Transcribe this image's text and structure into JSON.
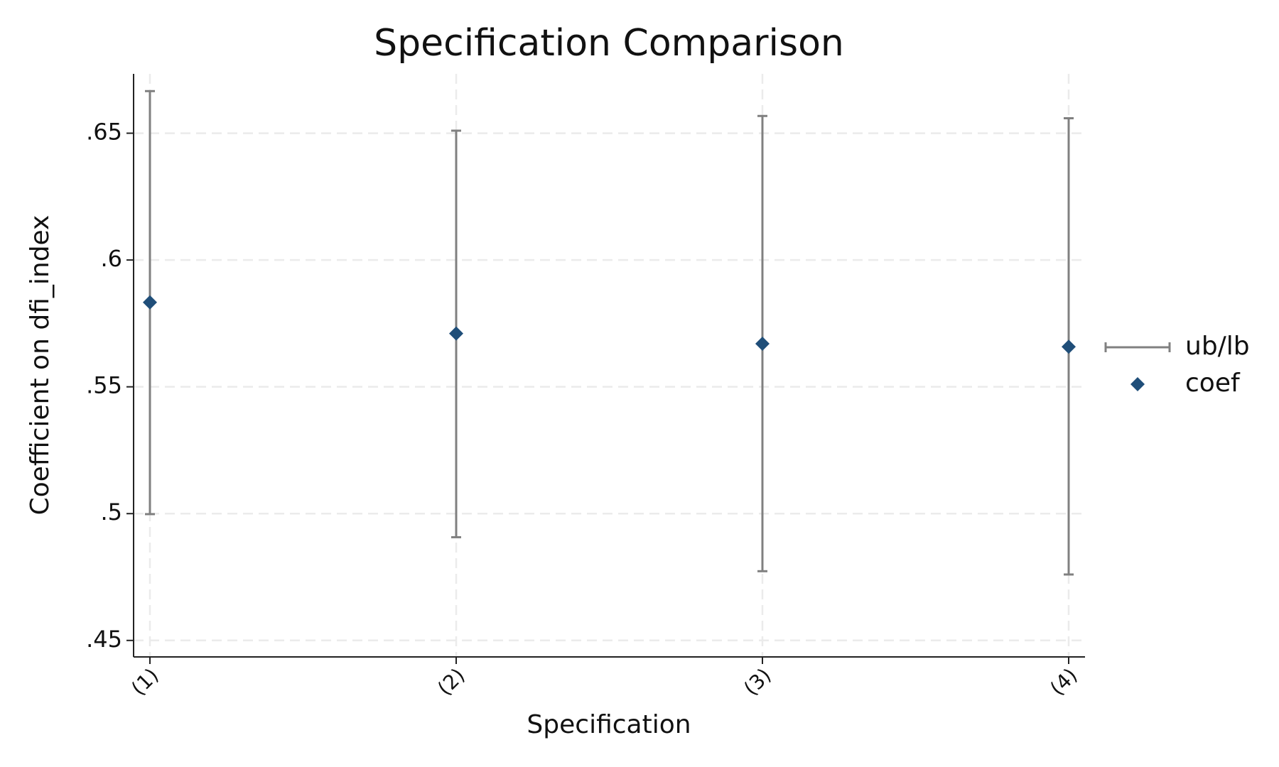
{
  "chart_data": {
    "type": "errorbar",
    "title": "Specification Comparison",
    "x_label": "Specification",
    "y_label": "Coefficient on dfi_index",
    "categories": [
      "(1)",
      "(2)",
      "(3)",
      "(4)"
    ],
    "series": [
      {
        "name": "ub/lb",
        "color": "#808080",
        "upper": [
          0.6666,
          0.651,
          0.6568,
          0.6559
        ],
        "lower": [
          0.4998,
          0.4907,
          0.4773,
          0.476
        ]
      },
      {
        "name": "coef",
        "color": "#1f4e79",
        "values": [
          0.5833,
          0.571,
          0.567,
          0.5658
        ]
      }
    ],
    "ylim": [
      0.4435,
      0.6734
    ],
    "yticks": [
      {
        "value": 0.45,
        "label": ".45"
      },
      {
        "value": 0.5,
        "label": ".5"
      },
      {
        "value": 0.55,
        "label": ".55"
      },
      {
        "value": 0.6,
        "label": ".6"
      },
      {
        "value": 0.65,
        "label": ".65"
      }
    ],
    "grid": true,
    "legend": "right"
  }
}
